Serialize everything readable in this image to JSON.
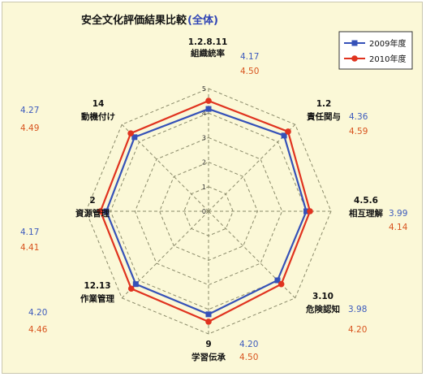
{
  "chart_data": {
    "type": "radar",
    "title": "安全文化評価結果比較",
    "title_suffix": "(全体)",
    "rmax": 5,
    "ticks": [
      0,
      1,
      2,
      3,
      4,
      5
    ],
    "grid": true,
    "legend": "top-right",
    "categories": [
      {
        "code": "1.2.8.11",
        "name": "組織統率"
      },
      {
        "code": "1.2",
        "name": "責任関与"
      },
      {
        "code": "4.5.6",
        "name": "相互理解"
      },
      {
        "code": "3.10",
        "name": "危険認知"
      },
      {
        "code": "9",
        "name": "学習伝承"
      },
      {
        "code": "12.13",
        "name": "作業管理"
      },
      {
        "code": "2",
        "name": "資源管理"
      },
      {
        "code": "14",
        "name": "動機付け"
      }
    ],
    "series": [
      {
        "name": "2009年度",
        "color": "#3551b8",
        "marker": "square",
        "values": [
          4.17,
          4.36,
          3.99,
          3.98,
          4.2,
          4.2,
          4.17,
          4.27
        ],
        "labels": [
          "4.17",
          "4.36",
          "3.99",
          "3.98",
          "4.20",
          "4.20",
          "4.17",
          "4.27"
        ]
      },
      {
        "name": "2010年度",
        "color": "#e0331f",
        "marker": "circle",
        "values": [
          4.5,
          4.59,
          4.14,
          4.2,
          4.5,
          4.46,
          4.41,
          4.49
        ],
        "labels": [
          "4.50",
          "4.59",
          "4.14",
          "4.20",
          "4.50",
          "4.46",
          "4.41",
          "4.49"
        ]
      }
    ]
  }
}
